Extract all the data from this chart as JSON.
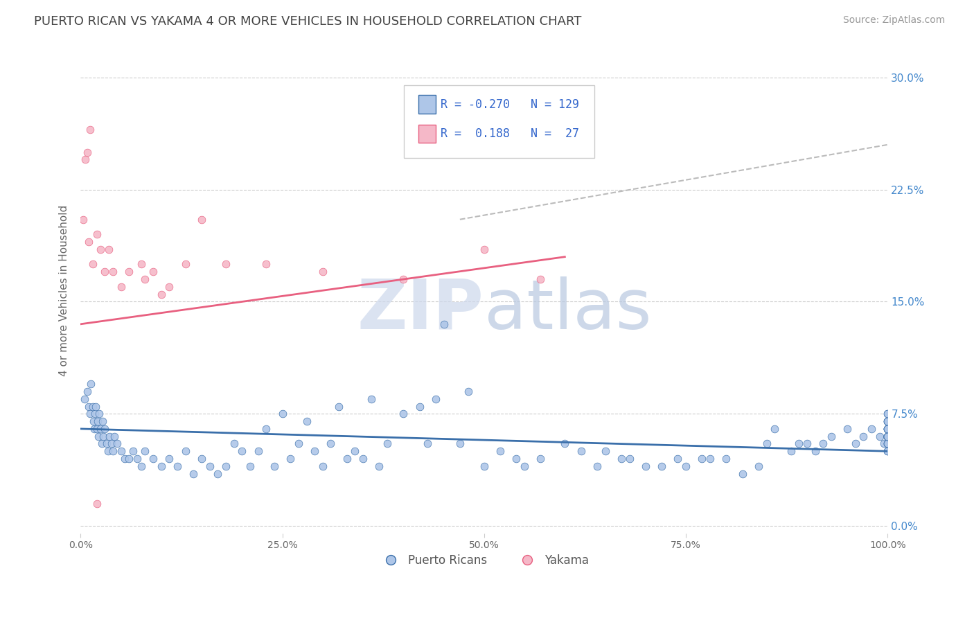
{
  "title": "PUERTO RICAN VS YAKAMA 4 OR MORE VEHICLES IN HOUSEHOLD CORRELATION CHART",
  "source": "Source: ZipAtlas.com",
  "ylabel": "4 or more Vehicles in Household",
  "xlim": [
    0,
    100
  ],
  "ylim": [
    -0.5,
    32
  ],
  "yticks": [
    0,
    7.5,
    15.0,
    22.5,
    30.0
  ],
  "xticks": [
    0,
    25,
    50,
    75,
    100
  ],
  "xtick_labels": [
    "0.0%",
    "25.0%",
    "50.0%",
    "75.0%",
    "100.0%"
  ],
  "legend_labels": [
    "Puerto Ricans",
    "Yakama"
  ],
  "R_puerto": -0.27,
  "N_puerto": 129,
  "R_yakama": 0.188,
  "N_yakama": 27,
  "color_blue": "#aec6e8",
  "color_pink": "#f5b8c8",
  "trend_blue": "#3a6faa",
  "trend_pink": "#e86080",
  "trend_gray": "#bbbbbb",
  "background": "#ffffff",
  "grid_color": "#cccccc",
  "blue_scatter_x": [
    0.5,
    0.8,
    1.0,
    1.2,
    1.3,
    1.5,
    1.6,
    1.7,
    1.8,
    1.9,
    2.0,
    2.1,
    2.2,
    2.3,
    2.5,
    2.6,
    2.7,
    2.8,
    3.0,
    3.2,
    3.4,
    3.6,
    3.8,
    4.0,
    4.2,
    4.5,
    5.0,
    5.5,
    6.0,
    6.5,
    7.0,
    7.5,
    8.0,
    9.0,
    10.0,
    11.0,
    12.0,
    13.0,
    14.0,
    15.0,
    16.0,
    17.0,
    18.0,
    19.0,
    20.0,
    21.0,
    22.0,
    23.0,
    24.0,
    25.0,
    26.0,
    27.0,
    28.0,
    29.0,
    30.0,
    31.0,
    32.0,
    33.0,
    34.0,
    35.0,
    36.0,
    37.0,
    38.0,
    40.0,
    42.0,
    43.0,
    44.0,
    45.0,
    47.0,
    48.0,
    50.0,
    52.0,
    54.0,
    55.0,
    57.0,
    60.0,
    62.0,
    64.0,
    65.0,
    67.0,
    68.0,
    70.0,
    72.0,
    74.0,
    75.0,
    77.0,
    78.0,
    80.0,
    82.0,
    84.0,
    85.0,
    86.0,
    88.0,
    89.0,
    90.0,
    91.0,
    92.0,
    93.0,
    95.0,
    96.0,
    97.0,
    98.0,
    99.0,
    99.5,
    100.0,
    100.0,
    100.0,
    100.0,
    100.0,
    100.0,
    100.0,
    100.0,
    100.0,
    100.0,
    100.0,
    100.0,
    100.0,
    100.0,
    100.0,
    100.0,
    100.0,
    100.0,
    100.0,
    100.0,
    100.0,
    100.0,
    100.0,
    100.0,
    100.0
  ],
  "blue_scatter_y": [
    8.5,
    9.0,
    8.0,
    7.5,
    9.5,
    8.0,
    7.0,
    6.5,
    7.5,
    8.0,
    6.5,
    7.0,
    6.0,
    7.5,
    6.5,
    5.5,
    7.0,
    6.0,
    6.5,
    5.5,
    5.0,
    6.0,
    5.5,
    5.0,
    6.0,
    5.5,
    5.0,
    4.5,
    4.5,
    5.0,
    4.5,
    4.0,
    5.0,
    4.5,
    4.0,
    4.5,
    4.0,
    5.0,
    3.5,
    4.5,
    4.0,
    3.5,
    4.0,
    5.5,
    5.0,
    4.0,
    5.0,
    6.5,
    4.0,
    7.5,
    4.5,
    5.5,
    7.0,
    5.0,
    4.0,
    5.5,
    8.0,
    4.5,
    5.0,
    4.5,
    8.5,
    4.0,
    5.5,
    7.5,
    8.0,
    5.5,
    8.5,
    13.5,
    5.5,
    9.0,
    4.0,
    5.0,
    4.5,
    4.0,
    4.5,
    5.5,
    5.0,
    4.0,
    5.0,
    4.5,
    4.5,
    4.0,
    4.0,
    4.5,
    4.0,
    4.5,
    4.5,
    4.5,
    3.5,
    4.0,
    5.5,
    6.5,
    5.0,
    5.5,
    5.5,
    5.0,
    5.5,
    6.0,
    6.5,
    5.5,
    6.0,
    6.5,
    6.0,
    5.5,
    6.5,
    5.0,
    5.5,
    6.0,
    5.5,
    6.0,
    6.5,
    5.5,
    6.0,
    6.5,
    7.0,
    5.5,
    6.0,
    7.0,
    7.5,
    6.0,
    6.5,
    7.0,
    7.5,
    6.5,
    7.0,
    6.0,
    6.5,
    5.0,
    6.0
  ],
  "pink_scatter_x": [
    0.3,
    0.6,
    0.8,
    1.0,
    1.2,
    1.5,
    2.0,
    2.5,
    3.0,
    3.5,
    4.0,
    5.0,
    6.0,
    7.5,
    8.0,
    9.0,
    10.0,
    11.0,
    13.0,
    15.0,
    18.0,
    23.0,
    30.0,
    40.0,
    50.0,
    57.0,
    2.0
  ],
  "pink_scatter_y": [
    20.5,
    24.5,
    25.0,
    19.0,
    26.5,
    17.5,
    19.5,
    18.5,
    17.0,
    18.5,
    17.0,
    16.0,
    17.0,
    17.5,
    16.5,
    17.0,
    15.5,
    16.0,
    17.5,
    20.5,
    17.5,
    17.5,
    17.0,
    16.5,
    18.5,
    16.5,
    1.5
  ],
  "gray_line_x": [
    47,
    100
  ],
  "gray_line_y": [
    20.5,
    25.5
  ]
}
